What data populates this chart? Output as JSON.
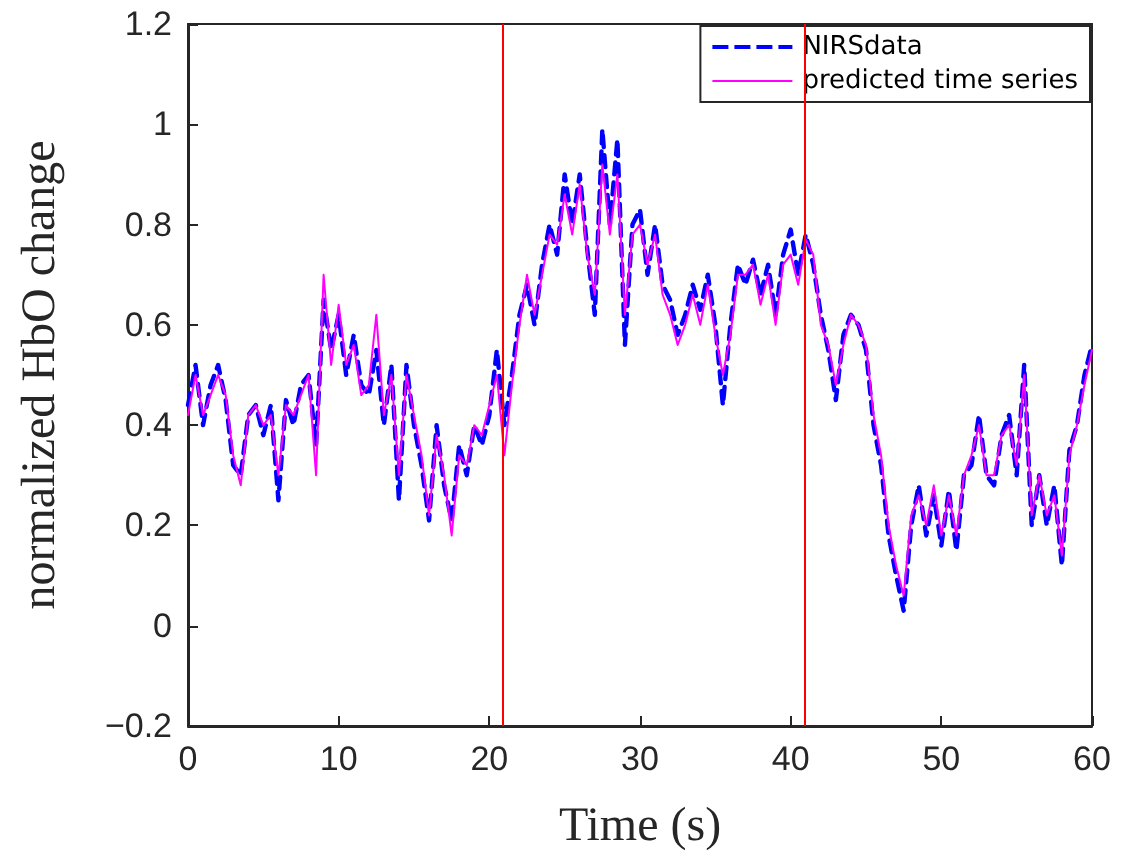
{
  "chart_data": {
    "type": "line",
    "xlabel": "Time (s)",
    "ylabel": "normalized HbO change",
    "xlim": [
      0,
      60
    ],
    "xticks": [
      0,
      10,
      20,
      30,
      40,
      50,
      60
    ],
    "ylim": [
      -0.2,
      1.2
    ],
    "yticks": [
      {
        "value": -0.2,
        "label": "−0.2"
      },
      0,
      0.2,
      0.4,
      0.6,
      0.8,
      1,
      1.2
    ],
    "x": [
      0,
      0.5,
      1,
      1.5,
      2,
      2.5,
      3,
      3.5,
      4,
      4.5,
      5,
      5.5,
      6,
      6.5,
      7,
      7.5,
      8,
      8.5,
      9,
      9.5,
      10,
      10.5,
      11,
      11.5,
      12,
      12.5,
      13,
      13.5,
      14,
      14.5,
      15,
      15.5,
      16,
      16.5,
      17,
      17.5,
      18,
      18.5,
      19,
      19.5,
      20,
      20.5,
      21,
      21.5,
      22,
      22.5,
      23,
      23.5,
      24,
      24.5,
      25,
      25.5,
      26,
      26.5,
      27,
      27.5,
      28,
      28.5,
      29,
      29.5,
      30,
      30.5,
      31,
      31.5,
      32,
      32.5,
      33,
      33.5,
      34,
      34.5,
      35,
      35.5,
      36,
      36.5,
      37,
      37.5,
      38,
      38.5,
      39,
      39.5,
      40,
      40.5,
      41,
      41.5,
      42,
      42.5,
      43,
      43.5,
      44,
      44.5,
      45,
      45.5,
      46,
      46.5,
      47,
      47.5,
      48,
      48.5,
      49,
      49.5,
      50,
      50.5,
      51,
      51.5,
      52,
      52.5,
      53,
      53.5,
      54,
      54.5,
      55,
      55.5,
      56,
      56.5,
      57,
      57.5,
      58,
      58.5,
      59,
      59.5,
      60
    ],
    "series": [
      {
        "name": "NIRSdata",
        "color": "#0000ff",
        "line_style": "dashed",
        "values": [
          0.44,
          0.52,
          0.4,
          0.48,
          0.52,
          0.45,
          0.32,
          0.3,
          0.42,
          0.44,
          0.38,
          0.44,
          0.25,
          0.45,
          0.4,
          0.48,
          0.5,
          0.36,
          0.65,
          0.55,
          0.62,
          0.5,
          0.58,
          0.48,
          0.46,
          0.55,
          0.4,
          0.52,
          0.25,
          0.52,
          0.4,
          0.32,
          0.21,
          0.4,
          0.28,
          0.21,
          0.36,
          0.3,
          0.4,
          0.36,
          0.42,
          0.55,
          0.4,
          0.5,
          0.62,
          0.68,
          0.6,
          0.72,
          0.8,
          0.74,
          0.9,
          0.8,
          0.9,
          0.75,
          0.62,
          0.99,
          0.8,
          0.97,
          0.56,
          0.8,
          0.83,
          0.7,
          0.8,
          0.68,
          0.65,
          0.58,
          0.62,
          0.68,
          0.63,
          0.7,
          0.6,
          0.44,
          0.6,
          0.72,
          0.68,
          0.73,
          0.66,
          0.72,
          0.62,
          0.74,
          0.79,
          0.7,
          0.78,
          0.72,
          0.62,
          0.55,
          0.45,
          0.58,
          0.62,
          0.6,
          0.55,
          0.4,
          0.32,
          0.18,
          0.1,
          0.03,
          0.2,
          0.28,
          0.18,
          0.26,
          0.16,
          0.27,
          0.15,
          0.3,
          0.32,
          0.42,
          0.3,
          0.28,
          0.38,
          0.42,
          0.3,
          0.52,
          0.2,
          0.3,
          0.2,
          0.28,
          0.12,
          0.35,
          0.4,
          0.5,
          0.56
        ]
      },
      {
        "name": "predicted time series",
        "color": "#ff00ff",
        "line_style": "solid",
        "values": [
          0.42,
          0.5,
          0.42,
          0.46,
          0.5,
          0.46,
          0.34,
          0.28,
          0.42,
          0.44,
          0.4,
          0.42,
          0.3,
          0.44,
          0.42,
          0.46,
          0.5,
          0.3,
          0.7,
          0.52,
          0.64,
          0.52,
          0.56,
          0.46,
          0.48,
          0.62,
          0.42,
          0.5,
          0.3,
          0.5,
          0.42,
          0.34,
          0.22,
          0.38,
          0.3,
          0.18,
          0.34,
          0.32,
          0.4,
          0.38,
          0.44,
          0.5,
          0.34,
          0.48,
          0.6,
          0.7,
          0.62,
          0.7,
          0.78,
          0.76,
          0.86,
          0.78,
          0.88,
          0.74,
          0.66,
          0.92,
          0.78,
          0.9,
          0.62,
          0.78,
          0.8,
          0.72,
          0.78,
          0.66,
          0.62,
          0.56,
          0.6,
          0.66,
          0.6,
          0.68,
          0.58,
          0.5,
          0.58,
          0.7,
          0.7,
          0.72,
          0.64,
          0.7,
          0.6,
          0.72,
          0.74,
          0.68,
          0.77,
          0.74,
          0.6,
          0.56,
          0.48,
          0.56,
          0.62,
          0.6,
          0.56,
          0.42,
          0.34,
          0.2,
          0.12,
          0.06,
          0.22,
          0.26,
          0.2,
          0.28,
          0.18,
          0.26,
          0.18,
          0.3,
          0.34,
          0.4,
          0.3,
          0.3,
          0.38,
          0.4,
          0.32,
          0.5,
          0.22,
          0.3,
          0.22,
          0.26,
          0.14,
          0.34,
          0.4,
          0.48,
          0.55
        ]
      }
    ],
    "ref_lines": [
      {
        "axis": "x",
        "value": 20.9,
        "color": "#ff0000"
      },
      {
        "axis": "x",
        "value": 40.9,
        "color": "#ff0000"
      }
    ],
    "legend": "top right",
    "grid": false,
    "marker": "none"
  }
}
